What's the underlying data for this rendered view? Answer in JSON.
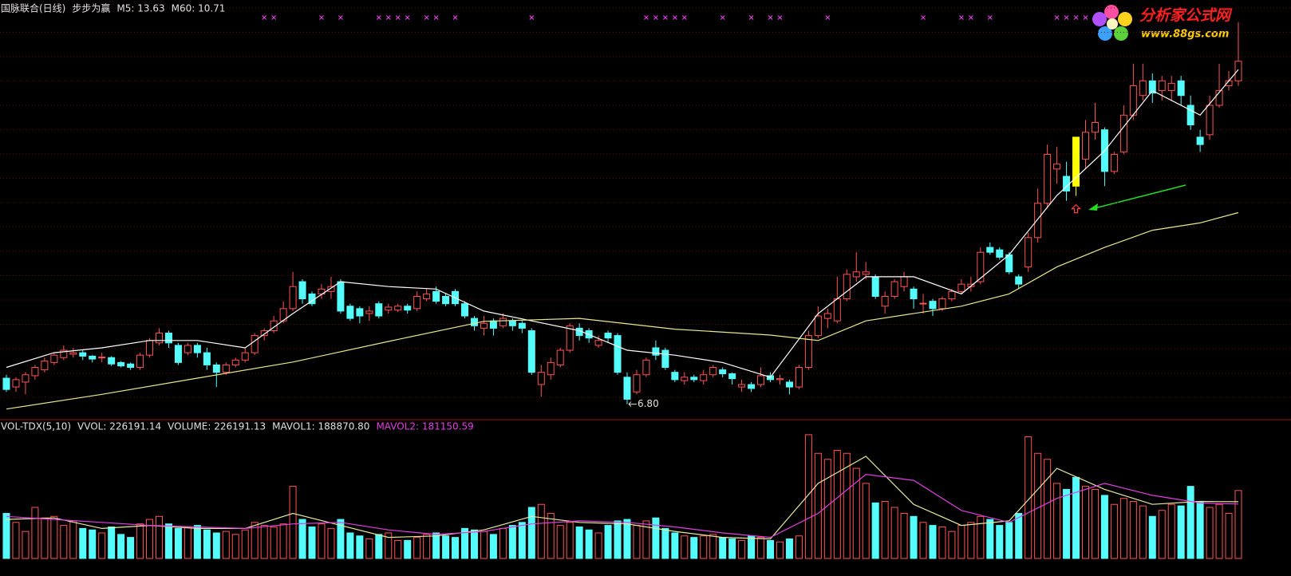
{
  "chart_data": [
    {
      "type": "candlestick",
      "title": "国脉联合(日线)",
      "indicator": "步步为赢",
      "legend": [
        {
          "text": "M5: 13.63",
          "color": "#e0e0e0"
        },
        {
          "text": "M60: 10.71",
          "color": "#e0e0e0"
        }
      ],
      "ylim": [
        6.5,
        15.05
      ],
      "up_color": "#ff5454",
      "down_color": "#54fcfc",
      "highlight": {
        "index": 112,
        "color": "#ffff00"
      },
      "candles": [
        [
          7.33,
          7.4,
          7.05,
          7.1
        ],
        [
          7.15,
          7.35,
          7.05,
          7.3
        ],
        [
          7.25,
          7.45,
          7.0,
          7.4
        ],
        [
          7.38,
          7.6,
          7.3,
          7.55
        ],
        [
          7.5,
          7.75,
          7.45,
          7.68
        ],
        [
          7.65,
          7.85,
          7.6,
          7.8
        ],
        [
          7.75,
          8.0,
          7.7,
          7.9
        ],
        [
          7.82,
          7.95,
          7.75,
          7.85
        ],
        [
          7.85,
          7.9,
          7.7,
          7.78
        ],
        [
          7.78,
          7.8,
          7.65,
          7.72
        ],
        [
          7.75,
          7.85,
          7.65,
          7.76
        ],
        [
          7.75,
          7.78,
          7.58,
          7.62
        ],
        [
          7.65,
          7.68,
          7.55,
          7.58
        ],
        [
          7.62,
          7.65,
          7.5,
          7.55
        ],
        [
          7.55,
          7.85,
          7.5,
          7.8
        ],
        [
          7.8,
          8.15,
          7.75,
          8.1
        ],
        [
          8.05,
          8.35,
          8.0,
          8.25
        ],
        [
          8.25,
          8.3,
          7.95,
          8.05
        ],
        [
          8.0,
          8.05,
          7.6,
          7.65
        ],
        [
          7.85,
          8.05,
          7.8,
          8.0
        ],
        [
          8.0,
          8.05,
          7.75,
          7.85
        ],
        [
          7.85,
          7.95,
          7.5,
          7.6
        ],
        [
          7.6,
          7.65,
          7.15,
          7.45
        ],
        [
          7.45,
          7.65,
          7.4,
          7.6
        ],
        [
          7.6,
          7.75,
          7.55,
          7.7
        ],
        [
          7.7,
          7.95,
          7.65,
          7.85
        ],
        [
          7.85,
          8.25,
          7.8,
          8.2
        ],
        [
          8.2,
          8.35,
          8.1,
          8.3
        ],
        [
          8.3,
          8.6,
          8.25,
          8.5
        ],
        [
          8.5,
          8.9,
          8.45,
          8.75
        ],
        [
          8.75,
          9.5,
          8.7,
          9.2
        ],
        [
          9.3,
          9.35,
          8.85,
          8.95
        ],
        [
          9.05,
          9.1,
          8.8,
          8.85
        ],
        [
          9.05,
          9.25,
          8.95,
          9.15
        ],
        [
          9.1,
          9.4,
          8.95,
          9.2
        ],
        [
          9.3,
          9.35,
          8.65,
          8.7
        ],
        [
          8.8,
          8.85,
          8.5,
          8.55
        ],
        [
          8.75,
          8.8,
          8.45,
          8.6
        ],
        [
          8.65,
          8.8,
          8.5,
          8.7
        ],
        [
          8.85,
          8.9,
          8.55,
          8.6
        ],
        [
          8.72,
          8.85,
          8.65,
          8.78
        ],
        [
          8.72,
          8.85,
          8.68,
          8.8
        ],
        [
          8.8,
          8.85,
          8.65,
          8.72
        ],
        [
          8.75,
          9.1,
          8.7,
          9.0
        ],
        [
          8.95,
          9.15,
          8.9,
          9.05
        ],
        [
          9.1,
          9.2,
          8.85,
          8.9
        ],
        [
          9.0,
          9.05,
          8.8,
          8.85
        ],
        [
          9.1,
          9.15,
          8.8,
          8.85
        ],
        [
          8.85,
          8.9,
          8.55,
          8.6
        ],
        [
          8.55,
          8.6,
          8.3,
          8.4
        ],
        [
          8.35,
          8.6,
          8.2,
          8.45
        ],
        [
          8.5,
          8.55,
          8.2,
          8.35
        ],
        [
          8.4,
          8.65,
          8.35,
          8.55
        ],
        [
          8.5,
          8.55,
          8.3,
          8.4
        ],
        [
          8.45,
          8.5,
          8.25,
          8.35
        ],
        [
          8.3,
          8.35,
          7.4,
          7.45
        ],
        [
          7.2,
          7.6,
          6.95,
          7.45
        ],
        [
          7.4,
          7.75,
          7.3,
          7.65
        ],
        [
          7.6,
          7.95,
          7.55,
          7.9
        ],
        [
          7.9,
          8.45,
          7.85,
          8.4
        ],
        [
          8.35,
          8.45,
          8.1,
          8.2
        ],
        [
          8.3,
          8.35,
          8.05,
          8.15
        ],
        [
          8.0,
          8.2,
          7.95,
          8.1
        ],
        [
          8.25,
          8.3,
          8.05,
          8.15
        ],
        [
          8.2,
          8.25,
          7.4,
          7.45
        ],
        [
          7.35,
          7.45,
          6.8,
          6.9
        ],
        [
          7.05,
          7.5,
          7.0,
          7.4
        ],
        [
          7.4,
          7.75,
          7.35,
          7.7
        ],
        [
          7.95,
          8.1,
          7.7,
          7.8
        ],
        [
          7.9,
          7.95,
          7.5,
          7.55
        ],
        [
          7.45,
          7.5,
          7.25,
          7.3
        ],
        [
          7.28,
          7.45,
          7.2,
          7.35
        ],
        [
          7.35,
          7.4,
          7.25,
          7.3
        ],
        [
          7.28,
          7.5,
          7.2,
          7.4
        ],
        [
          7.4,
          7.6,
          7.35,
          7.55
        ],
        [
          7.5,
          7.55,
          7.35,
          7.42
        ],
        [
          7.42,
          7.45,
          7.2,
          7.32
        ],
        [
          7.15,
          7.3,
          7.05,
          7.2
        ],
        [
          7.2,
          7.25,
          7.05,
          7.12
        ],
        [
          7.2,
          7.55,
          7.15,
          7.38
        ],
        [
          7.38,
          7.45,
          7.25,
          7.3
        ],
        [
          7.3,
          7.4,
          7.2,
          7.32
        ],
        [
          7.25,
          7.3,
          7.0,
          7.15
        ],
        [
          7.15,
          7.6,
          7.1,
          7.55
        ],
        [
          7.55,
          8.3,
          7.5,
          8.2
        ],
        [
          8.2,
          8.8,
          8.15,
          8.6
        ],
        [
          8.55,
          8.75,
          8.35,
          8.65
        ],
        [
          8.5,
          9.4,
          8.45,
          8.95
        ],
        [
          8.95,
          9.55,
          8.9,
          9.45
        ],
        [
          9.4,
          9.9,
          9.3,
          9.5
        ],
        [
          9.45,
          9.7,
          9.35,
          9.5
        ],
        [
          9.4,
          9.45,
          8.95,
          9.0
        ],
        [
          8.8,
          9.1,
          8.65,
          9.0
        ],
        [
          9.0,
          9.35,
          8.95,
          9.3
        ],
        [
          9.2,
          9.5,
          9.1,
          9.4
        ],
        [
          9.15,
          9.2,
          8.75,
          8.95
        ],
        [
          8.85,
          9.05,
          8.65,
          8.86
        ],
        [
          8.9,
          8.95,
          8.6,
          8.75
        ],
        [
          8.75,
          9.0,
          8.7,
          8.95
        ],
        [
          8.95,
          9.15,
          8.9,
          9.1
        ],
        [
          9.1,
          9.35,
          9.05,
          9.25
        ],
        [
          9.2,
          9.4,
          9.1,
          9.25
        ],
        [
          9.3,
          10.0,
          9.25,
          9.9
        ],
        [
          10.0,
          10.1,
          9.85,
          9.9
        ],
        [
          9.95,
          10.0,
          9.75,
          9.8
        ],
        [
          9.85,
          9.9,
          9.45,
          9.5
        ],
        [
          9.4,
          9.45,
          9.15,
          9.25
        ],
        [
          9.6,
          10.3,
          9.5,
          10.2
        ],
        [
          10.2,
          11.2,
          10.1,
          10.9
        ],
        [
          10.9,
          12.1,
          10.8,
          11.9
        ],
        [
          11.6,
          12.05,
          11.3,
          11.7
        ],
        [
          11.45,
          11.75,
          10.95,
          11.15
        ],
        [
          12.25,
          12.25,
          11.05,
          11.25
        ],
        [
          11.8,
          12.6,
          11.6,
          12.35
        ],
        [
          12.35,
          12.95,
          12.2,
          12.55
        ],
        [
          12.4,
          12.45,
          11.25,
          11.55
        ],
        [
          11.55,
          11.95,
          11.5,
          11.9
        ],
        [
          11.95,
          12.9,
          11.9,
          12.7
        ],
        [
          12.7,
          13.75,
          12.6,
          13.3
        ],
        [
          13.1,
          13.75,
          13.0,
          13.4
        ],
        [
          13.4,
          13.55,
          12.95,
          13.15
        ],
        [
          13.2,
          13.5,
          13.0,
          13.4
        ],
        [
          13.2,
          13.5,
          13.0,
          13.35
        ],
        [
          13.4,
          13.5,
          12.9,
          13.1
        ],
        [
          12.9,
          13.1,
          12.4,
          12.5
        ],
        [
          12.25,
          12.4,
          11.95,
          12.1
        ],
        [
          12.3,
          13.1,
          12.2,
          12.9
        ],
        [
          12.9,
          13.75,
          12.85,
          13.2
        ],
        [
          13.3,
          13.6,
          13.2,
          13.4
        ],
        [
          13.4,
          14.6,
          13.3,
          13.8
        ]
      ],
      "series": [
        {
          "color": "#ffffff",
          "x": [
            0,
            5,
            10,
            15,
            20,
            25,
            30,
            35,
            40,
            45,
            50,
            55,
            60,
            65,
            70,
            75,
            80,
            85,
            90,
            95,
            100,
            105,
            110,
            115,
            120,
            125,
            129
          ],
          "values": [
            7.55,
            7.85,
            7.95,
            8.1,
            8.1,
            7.95,
            8.65,
            9.3,
            9.2,
            9.15,
            8.7,
            8.5,
            8.3,
            7.9,
            7.8,
            7.65,
            7.35,
            8.65,
            9.4,
            9.4,
            9.05,
            9.85,
            11.06,
            11.97,
            13.2,
            12.7,
            13.63
          ]
        },
        {
          "color": "#e8e890",
          "x": [
            0,
            10,
            20,
            30,
            40,
            50,
            60,
            70,
            80,
            85,
            90,
            100,
            105,
            110,
            115,
            120,
            125,
            129
          ],
          "values": [
            6.7,
            7.0,
            7.33,
            7.66,
            8.08,
            8.49,
            8.55,
            8.33,
            8.21,
            8.1,
            8.5,
            8.8,
            9.05,
            9.6,
            10.0,
            10.35,
            10.5,
            10.71
          ]
        }
      ],
      "signals": {
        "color": "#e040e0",
        "x": [
          27,
          28,
          33,
          35,
          39,
          40,
          41,
          42,
          44,
          45,
          47,
          55,
          67,
          68,
          69,
          70,
          71,
          75,
          78,
          80,
          81,
          86,
          96,
          100,
          101,
          103,
          110,
          111,
          112,
          113
        ]
      },
      "low_label": "6.80"
    },
    {
      "type": "volume",
      "title": "VOL-TDX(5,10)",
      "legend": [
        {
          "text": "VVOL: 226191.14",
          "color": "#e0e0e0"
        },
        {
          "text": "VOLUME: 226191.13",
          "color": "#e0e0e0"
        },
        {
          "text": "MAVOL1: 188870.80",
          "color": "#e0e0e0"
        },
        {
          "text": "MAVOL2: 181150.59",
          "color": "#e040e0"
        }
      ],
      "ylim": [
        0,
        425000
      ],
      "values": [
        150000,
        120000,
        90000,
        170000,
        135000,
        140000,
        110000,
        125000,
        100000,
        95000,
        85000,
        105000,
        80000,
        70000,
        115000,
        130000,
        140000,
        115000,
        100000,
        105000,
        110000,
        95000,
        85000,
        90000,
        80000,
        95000,
        120000,
        110000,
        105000,
        115000,
        240000,
        130000,
        105000,
        115000,
        100000,
        130000,
        85000,
        75000,
        65000,
        80000,
        85000,
        60000,
        60000,
        70000,
        80000,
        85000,
        75000,
        70000,
        100000,
        95000,
        90000,
        80000,
        100000,
        110000,
        120000,
        170000,
        180000,
        150000,
        110000,
        120000,
        105000,
        95000,
        85000,
        110000,
        125000,
        130000,
        110000,
        125000,
        135000,
        100000,
        85000,
        75000,
        70000,
        75000,
        80000,
        70000,
        65000,
        60000,
        75000,
        70000,
        60000,
        55000,
        65000,
        75000,
        412000,
        350000,
        330000,
        360000,
        350000,
        300000,
        250000,
        185000,
        190000,
        170000,
        150000,
        140000,
        120000,
        110000,
        105000,
        90000,
        110000,
        120000,
        140000,
        130000,
        110000,
        120000,
        150000,
        405000,
        350000,
        330000,
        250000,
        230000,
        270000,
        240000,
        230000,
        210000,
        180000,
        200000,
        190000,
        175000,
        140000,
        160000,
        180000,
        175000,
        240000,
        190000,
        170000,
        180000,
        150000,
        226191
      ],
      "series": [
        {
          "color": "#e8e8a0",
          "x": [
            0,
            5,
            10,
            15,
            20,
            25,
            30,
            35,
            40,
            45,
            50,
            55,
            60,
            65,
            70,
            75,
            80,
            85,
            90,
            95,
            100,
            105,
            110,
            115,
            120,
            125,
            129
          ],
          "values": [
            130000,
            135000,
            100000,
            110000,
            100000,
            100000,
            150000,
            110000,
            70000,
            75000,
            95000,
            140000,
            120000,
            115000,
            90000,
            70000,
            65000,
            250000,
            340000,
            180000,
            110000,
            125000,
            300000,
            230000,
            180000,
            190000,
            188870.8
          ]
        },
        {
          "color": "#e040e0",
          "x": [
            0,
            5,
            10,
            15,
            20,
            25,
            30,
            35,
            40,
            45,
            50,
            55,
            60,
            65,
            70,
            75,
            80,
            85,
            90,
            95,
            100,
            105,
            110,
            115,
            120,
            125,
            129
          ],
          "values": [
            140000,
            130000,
            120000,
            110000,
            105000,
            100000,
            115000,
            120000,
            95000,
            80000,
            90000,
            115000,
            125000,
            120000,
            105000,
            85000,
            70000,
            150000,
            280000,
            260000,
            160000,
            120000,
            200000,
            250000,
            210000,
            185000,
            181150.59
          ]
        }
      ]
    }
  ],
  "logo": {
    "name": "分析家公式网",
    "url": "www.88gs.com"
  }
}
